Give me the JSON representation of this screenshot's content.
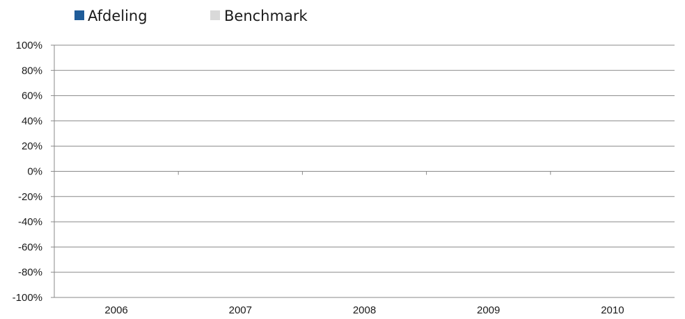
{
  "chart_data": {
    "type": "bar",
    "title": "",
    "xlabel": "",
    "ylabel": "",
    "categories": [
      "2006",
      "2007",
      "2008",
      "2009",
      "2010"
    ],
    "series": [
      {
        "name": "Afdeling",
        "color": "#1f5c99",
        "values": [
          0,
          0,
          0,
          0,
          0
        ]
      },
      {
        "name": "Benchmark",
        "color": "#d9d9d9",
        "values": [
          0,
          0,
          0,
          0,
          0
        ]
      }
    ],
    "ylim": [
      -100,
      100
    ],
    "y_ticks": [
      "100%",
      "80%",
      "60%",
      "40%",
      "20%",
      "0%",
      "-20%",
      "-40%",
      "-60%",
      "-80%",
      "-100%"
    ],
    "y_tick_values": [
      100,
      80,
      60,
      40,
      20,
      0,
      -20,
      -40,
      -60,
      -80,
      -100
    ],
    "grid": true,
    "legend_position": "top-left",
    "gridline_color": "#898989"
  }
}
